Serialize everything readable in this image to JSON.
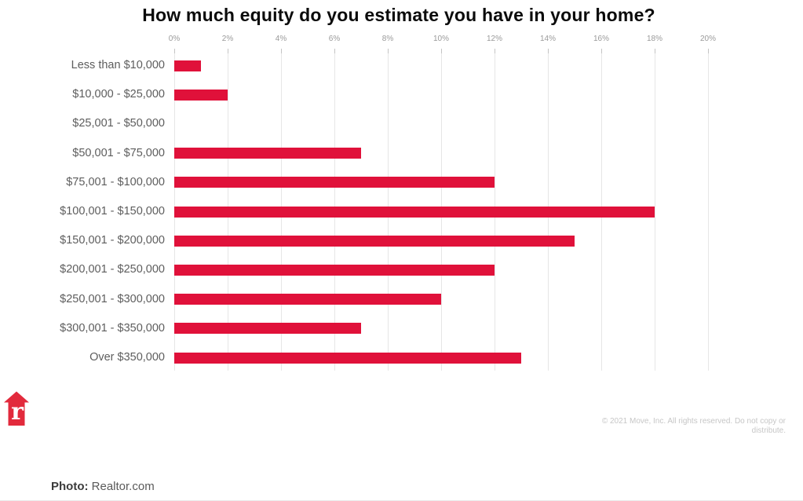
{
  "title": "How much equity do you estimate you have in your home?",
  "chart_data": {
    "type": "bar",
    "orientation": "horizontal",
    "title": "How much equity do you estimate you have in your home?",
    "categories": [
      "Less than $10,000",
      "$10,000 - $25,000",
      "$25,001 - $50,000",
      "$50,001 - $75,000",
      "$75,001 - $100,000",
      "$100,001 - $150,000",
      "$150,001 - $200,000",
      "$200,001 - $250,000",
      "$250,001 - $300,000",
      "$300,001 - $350,000",
      "Over $350,000"
    ],
    "values": [
      1,
      2,
      0,
      7,
      12,
      18,
      15,
      12,
      10,
      7,
      13
    ],
    "unit": "%",
    "xlabel": "",
    "ylabel": "",
    "xlim": [
      0,
      20
    ],
    "x_tick_values": [
      0,
      2,
      4,
      6,
      8,
      10,
      12,
      14,
      16,
      18,
      20
    ],
    "x_ticks": [
      "0%",
      "2%",
      "4%",
      "6%",
      "8%",
      "10%",
      "12%",
      "14%",
      "16%",
      "18%",
      "20%"
    ],
    "grid": true,
    "legend": false,
    "bar_color": "#e0113a"
  },
  "logo": {
    "name": "realtor-com-logo",
    "letter": "r",
    "color": "#e22a3c"
  },
  "footer": {
    "copyright_line1": "© 2021 Move, Inc. All rights reserved. Do not copy or",
    "copyright_line2": "distribute.",
    "photo_label": "Photo:",
    "photo_source": "Realtor.com"
  }
}
